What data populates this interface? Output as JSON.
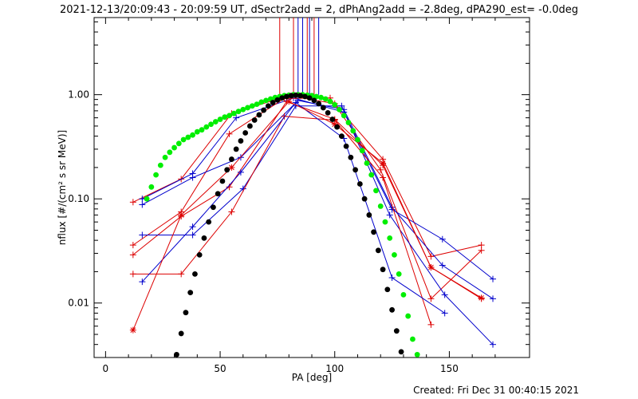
{
  "chart_data": {
    "type": "scatter",
    "title": "2021-12-13/20:09:43 - 20:09:59 UT, dSectr2add = 2, dPhAng2add = -2.8deg, dPA290_est= -0.0deg",
    "xlabel": "PA [deg]",
    "ylabel": "nflux [#/(cm² s sr MeV)]",
    "xlim": [
      -5,
      185
    ],
    "ylim": [
      0.003,
      5.5
    ],
    "yscale": "log",
    "x_ticks": [
      "0",
      "50",
      "100",
      "150"
    ],
    "x_tick_values": [
      0,
      50,
      100,
      150
    ],
    "y_ticks": [
      "0.01",
      "0.10",
      "1.00"
    ],
    "y_tick_values": [
      0.01,
      0.1,
      1.0
    ],
    "footer": "Created: Fri Dec 31 00:40:15 2021",
    "colors": {
      "red": "#dd0000",
      "blue": "#0000cc",
      "green": "#00ee00",
      "black": "#000000"
    },
    "vertical_markers": [
      {
        "x": 76,
        "color": "#dd0000"
      },
      {
        "x": 82,
        "color": "#dd0000"
      },
      {
        "x": 84,
        "color": "#0000cc"
      },
      {
        "x": 86,
        "color": "#0000cc"
      },
      {
        "x": 88,
        "color": "#dd0000"
      },
      {
        "x": 89,
        "color": "#0000cc"
      },
      {
        "x": 91,
        "color": "#dd0000"
      },
      {
        "x": 93,
        "color": "#0000cc"
      }
    ],
    "series": [
      {
        "color": "#dd0000",
        "marker": "plus",
        "points": [
          [
            12,
            0.093
          ],
          [
            33,
            0.155
          ],
          [
            55,
            0.66
          ],
          [
            80,
            0.98
          ],
          [
            100,
            0.82
          ],
          [
            121,
            0.24
          ],
          [
            142,
            0.028
          ],
          [
            164,
            0.036
          ]
        ]
      },
      {
        "color": "#0000cc",
        "marker": "plus",
        "points": [
          [
            16,
            0.1
          ],
          [
            38,
            0.175
          ],
          [
            57,
            0.6
          ],
          [
            82,
            0.93
          ],
          [
            104,
            0.68
          ],
          [
            125,
            0.079
          ],
          [
            147,
            0.041
          ],
          [
            169,
            0.017
          ]
        ]
      },
      {
        "color": "#dd0000",
        "marker": "plus",
        "points": [
          [
            12,
            0.036
          ],
          [
            33,
            0.075
          ],
          [
            54,
            0.42
          ],
          [
            78,
            0.92
          ],
          [
            98,
            0.93
          ],
          [
            120,
            0.19
          ],
          [
            142,
            0.011
          ],
          [
            164,
            0.032
          ]
        ]
      },
      {
        "color": "#0000cc",
        "marker": "plus",
        "points": [
          [
            16,
            0.088
          ],
          [
            38,
            0.16
          ],
          [
            59,
            0.25
          ],
          [
            84,
            0.88
          ],
          [
            104,
            0.72
          ],
          [
            125,
            0.083
          ],
          [
            147,
            0.023
          ],
          [
            169,
            0.011
          ]
        ]
      },
      {
        "color": "#dd0000",
        "marker": "plus",
        "points": [
          [
            12,
            0.029
          ],
          [
            33,
            0.068
          ],
          [
            54,
            0.13
          ],
          [
            79,
            0.86
          ],
          [
            100,
            0.58
          ],
          [
            121,
            0.21
          ],
          [
            142,
            0.022
          ],
          [
            164,
            0.011
          ]
        ]
      },
      {
        "color": "#0000cc",
        "marker": "plus",
        "points": [
          [
            16,
            0.045
          ],
          [
            38,
            0.045
          ],
          [
            60,
            0.125
          ],
          [
            83,
            0.78
          ],
          [
            103,
            0.78
          ],
          [
            124,
            0.07
          ],
          [
            148,
            0.012
          ],
          [
            169,
            0.004
          ]
        ]
      },
      {
        "color": "#dd0000",
        "marker": "plus",
        "points": [
          [
            12,
            0.019
          ],
          [
            33,
            0.019
          ],
          [
            55,
            0.075
          ],
          [
            78,
            0.62
          ],
          [
            100,
            0.57
          ],
          [
            121,
            0.16
          ],
          [
            142,
            0.0062
          ]
        ]
      },
      {
        "color": "#0000cc",
        "marker": "plus",
        "points": [
          [
            16,
            0.016
          ],
          [
            38,
            0.054
          ],
          [
            59,
            0.18
          ],
          [
            83,
            0.84
          ],
          [
            104,
            0.38
          ],
          [
            125,
            0.0175
          ],
          [
            148,
            0.008
          ]
        ]
      },
      {
        "color": "#dd0000",
        "marker": "asterisk",
        "points": [
          [
            12,
            0.0055
          ],
          [
            33,
            0.07
          ],
          [
            55,
            0.2
          ],
          [
            80,
            0.86
          ],
          [
            100,
            0.52
          ],
          [
            121,
            0.22
          ],
          [
            142,
            0.022
          ],
          [
            164,
            0.0112
          ]
        ]
      }
    ],
    "fit_curves": [
      {
        "color": "#00ee00",
        "dots": [
          [
            18,
            0.1
          ],
          [
            20,
            0.13
          ],
          [
            22,
            0.17
          ],
          [
            24,
            0.21
          ],
          [
            26,
            0.25
          ],
          [
            28,
            0.28
          ],
          [
            30,
            0.31
          ],
          [
            32,
            0.34
          ],
          [
            34,
            0.37
          ],
          [
            36,
            0.39
          ],
          [
            38,
            0.41
          ],
          [
            40,
            0.44
          ],
          [
            42,
            0.46
          ],
          [
            44,
            0.49
          ],
          [
            46,
            0.52
          ],
          [
            48,
            0.55
          ],
          [
            50,
            0.58
          ],
          [
            52,
            0.61
          ],
          [
            54,
            0.63
          ],
          [
            56,
            0.66
          ],
          [
            58,
            0.69
          ],
          [
            60,
            0.72
          ],
          [
            62,
            0.75
          ],
          [
            64,
            0.78
          ],
          [
            66,
            0.81
          ],
          [
            68,
            0.85
          ],
          [
            70,
            0.88
          ],
          [
            72,
            0.91
          ],
          [
            74,
            0.94
          ],
          [
            76,
            0.96
          ],
          [
            78,
            0.98
          ],
          [
            80,
            0.99
          ],
          [
            82,
            1.0
          ],
          [
            84,
            1.0
          ],
          [
            86,
            1.0
          ],
          [
            88,
            0.99
          ],
          [
            90,
            0.98
          ],
          [
            92,
            0.96
          ],
          [
            94,
            0.94
          ],
          [
            96,
            0.91
          ],
          [
            98,
            0.86
          ],
          [
            100,
            0.8
          ],
          [
            102,
            0.72
          ],
          [
            104,
            0.63
          ],
          [
            106,
            0.54
          ],
          [
            108,
            0.45
          ],
          [
            110,
            0.37
          ],
          [
            112,
            0.29
          ],
          [
            114,
            0.22
          ],
          [
            116,
            0.17
          ],
          [
            118,
            0.12
          ],
          [
            120,
            0.085
          ],
          [
            122,
            0.06
          ],
          [
            124,
            0.042
          ],
          [
            126,
            0.029
          ],
          [
            128,
            0.019
          ],
          [
            130,
            0.012
          ],
          [
            132,
            0.0075
          ],
          [
            134,
            0.0045
          ],
          [
            136,
            0.0032
          ]
        ]
      },
      {
        "color": "#000000",
        "dots": [
          [
            31,
            0.0032
          ],
          [
            33,
            0.0051
          ],
          [
            35,
            0.0081
          ],
          [
            37,
            0.0126
          ],
          [
            39,
            0.019
          ],
          [
            41,
            0.029
          ],
          [
            43,
            0.042
          ],
          [
            45,
            0.06
          ],
          [
            47,
            0.083
          ],
          [
            49,
            0.112
          ],
          [
            51,
            0.148
          ],
          [
            53,
            0.19
          ],
          [
            55,
            0.24
          ],
          [
            57,
            0.3
          ],
          [
            59,
            0.36
          ],
          [
            61,
            0.43
          ],
          [
            63,
            0.5
          ],
          [
            65,
            0.57
          ],
          [
            67,
            0.64
          ],
          [
            69,
            0.71
          ],
          [
            71,
            0.78
          ],
          [
            73,
            0.84
          ],
          [
            75,
            0.89
          ],
          [
            77,
            0.93
          ],
          [
            79,
            0.96
          ],
          [
            81,
            0.98
          ],
          [
            83,
            0.99
          ],
          [
            85,
            0.98
          ],
          [
            87,
            0.96
          ],
          [
            89,
            0.93
          ],
          [
            91,
            0.88
          ],
          [
            93,
            0.82
          ],
          [
            95,
            0.75
          ],
          [
            97,
            0.67
          ],
          [
            99,
            0.58
          ],
          [
            101,
            0.49
          ],
          [
            103,
            0.4
          ],
          [
            105,
            0.32
          ],
          [
            107,
            0.25
          ],
          [
            109,
            0.19
          ],
          [
            111,
            0.139
          ],
          [
            113,
            0.1
          ],
          [
            115,
            0.07
          ],
          [
            117,
            0.048
          ],
          [
            119,
            0.032
          ],
          [
            121,
            0.021
          ],
          [
            123,
            0.0135
          ],
          [
            125,
            0.0086
          ],
          [
            127,
            0.0054
          ],
          [
            129,
            0.0034
          ]
        ]
      }
    ]
  }
}
